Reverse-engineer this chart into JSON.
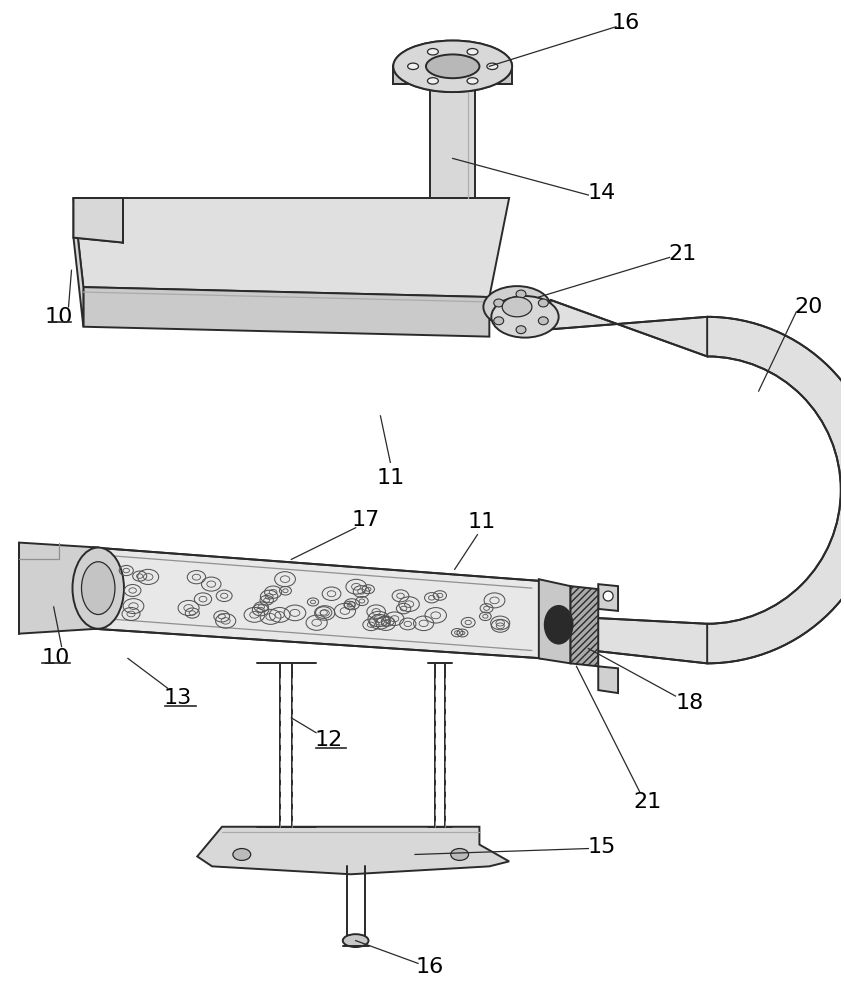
{
  "background_color": "#ffffff",
  "line_color": "#2a2a2a",
  "lw_main": 1.4,
  "lw_thin": 0.9,
  "fig_w": 8.45,
  "fig_h": 10.0,
  "dpi": 100
}
